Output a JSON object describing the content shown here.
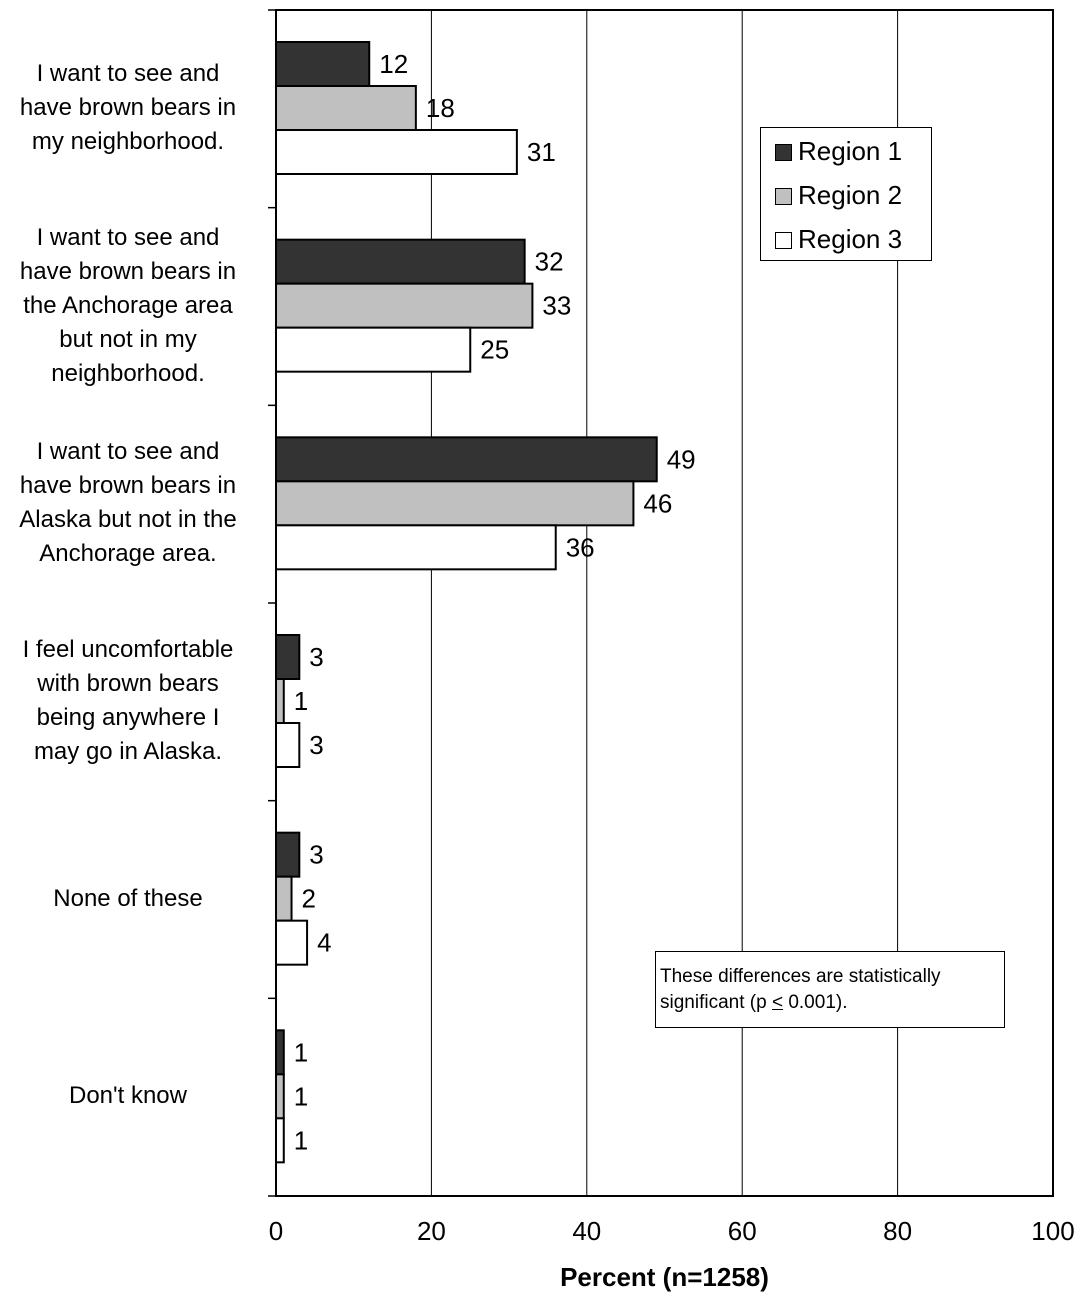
{
  "chart_data": {
    "type": "bar",
    "orientation": "horizontal",
    "categories": [
      [
        "I want to see and",
        "have brown bears in",
        "my neighborhood."
      ],
      [
        "I want to see and",
        "have brown bears in",
        "the Anchorage area",
        "but not in my",
        "neighborhood."
      ],
      [
        "I want to see and",
        "have brown bears in",
        "Alaska but not in the",
        "Anchorage area."
      ],
      [
        "I feel uncomfortable",
        "with brown bears",
        "being anywhere I",
        "may go in Alaska."
      ],
      [
        "None of these"
      ],
      [
        "Don't know"
      ]
    ],
    "series": [
      {
        "name": "Region 1",
        "color": "#333333",
        "values": [
          12,
          32,
          49,
          3,
          3,
          1
        ]
      },
      {
        "name": "Region 2",
        "color": "#c0c0c0",
        "values": [
          18,
          33,
          46,
          1,
          2,
          1
        ]
      },
      {
        "name": "Region 3",
        "color": "#ffffff",
        "values": [
          31,
          25,
          36,
          3,
          4,
          1
        ]
      }
    ],
    "xlabel": "Percent (n=1258)",
    "xlim": [
      0,
      100
    ],
    "xticks": [
      "0",
      "20",
      "40",
      "60",
      "80",
      "100"
    ],
    "grid": "vertical",
    "legend_position": "top-right",
    "annotation": {
      "line1": "These differences are statistically",
      "line2_pre": "significant (p ",
      "line2_sym": "<",
      "line2_post": " 0.001)."
    }
  }
}
